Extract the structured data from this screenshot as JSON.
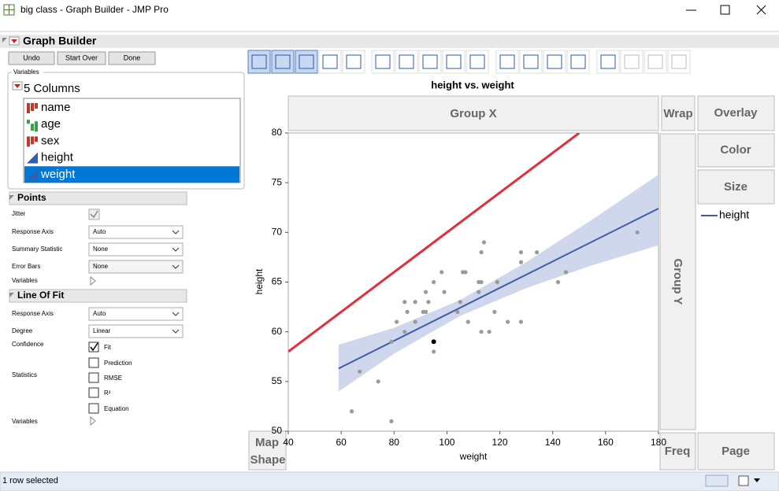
{
  "window": {
    "title": "big class - Graph Builder - JMP Pro"
  },
  "header": {
    "title": "Graph Builder",
    "buttons": [
      "Undo",
      "Start Over",
      "Done"
    ]
  },
  "variables": {
    "label": "Variables",
    "count": "5 Columns",
    "columns": [
      "name",
      "age",
      "sex",
      "height",
      "weight"
    ]
  },
  "points": {
    "title": "Points",
    "labels": [
      "Jitter",
      "Response Axis",
      "Summary Statistic",
      "Error Bars",
      "Variables"
    ],
    "selects": [
      "Auto",
      "None",
      "None"
    ]
  },
  "line_of_fit": {
    "title": "Line Of Fit",
    "labels": [
      "Response Axis",
      "Degree",
      "Confidence",
      "Statistics",
      "Variables"
    ],
    "selects": [
      "Auto",
      "Linear"
    ],
    "options": [
      "Fit",
      "Prediction",
      "RMSE",
      "R²",
      "Equation"
    ]
  },
  "zones": {
    "group_x": "Group X",
    "wrap": "Wrap",
    "overlay": "Overlay",
    "color": "Color",
    "size": "Size",
    "group_y": "Group Y",
    "map_shape": [
      "Map",
      "Shape"
    ],
    "freq": "Freq",
    "page": "Page"
  },
  "status": "1 row selected",
  "chart_data": {
    "type": "scatter",
    "title": "height vs. weight",
    "x_label": "weight",
    "y_label": "height",
    "x": [
      64,
      67,
      74,
      79,
      79,
      81,
      84,
      84,
      85,
      88,
      88,
      91,
      92,
      92,
      93,
      95,
      95,
      95,
      98,
      99,
      104,
      105,
      106,
      107,
      108,
      112,
      112,
      113,
      113,
      113,
      114,
      116,
      118,
      119,
      123,
      128,
      128,
      128,
      134,
      142,
      145,
      172
    ],
    "values": [
      52,
      56,
      55,
      51,
      59,
      61,
      63,
      60,
      62,
      63,
      61,
      62,
      64,
      62,
      63,
      59,
      58,
      65,
      66,
      64,
      62,
      63,
      66,
      66,
      61,
      65,
      64,
      65,
      68,
      60,
      69,
      60,
      62,
      65,
      61,
      61,
      67,
      68,
      68,
      65,
      66,
      70
    ],
    "color": "#9a9a9a",
    "selected": [
      15
    ],
    "selected_color": "#000000",
    "series": [
      {
        "name": "height",
        "color": "#3f5ba9",
        "x": [
          59,
          180
        ],
        "values": [
          56.3,
          72.4
        ]
      }
    ],
    "band": {
      "x": [
        59,
        80,
        105,
        130,
        155,
        180
      ],
      "upper": [
        58.7,
        60.4,
        63.2,
        67.0,
        71.3,
        75.8
      ],
      "lower": [
        54.0,
        57.8,
        61.6,
        64.4,
        66.7,
        68.7
      ],
      "color": "#c5d0e8"
    },
    "reference_line": {
      "x": [
        40,
        150
      ],
      "values": [
        58,
        80
      ],
      "color": "#e0303c"
    },
    "xlim": [
      40,
      180
    ],
    "xticks": [
      40,
      60,
      80,
      100,
      120,
      140,
      160,
      180
    ],
    "ylim": [
      50,
      80
    ],
    "yticks": [
      50,
      55,
      60,
      65,
      70,
      75,
      80
    ]
  }
}
